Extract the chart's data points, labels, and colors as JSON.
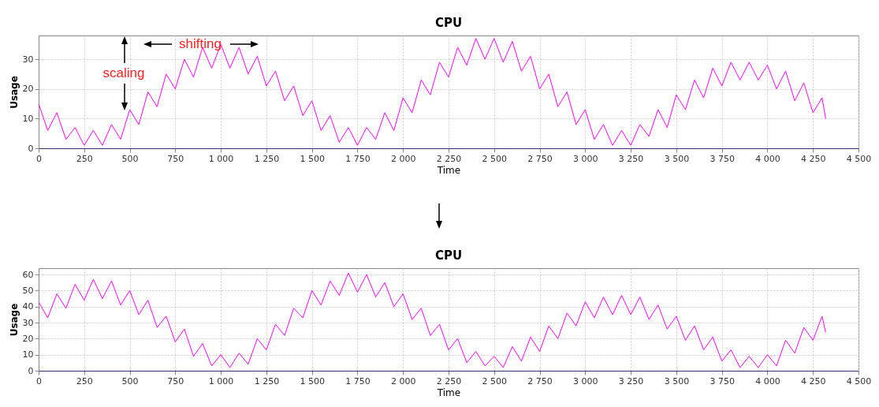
{
  "chart_data": [
    {
      "type": "line",
      "title": "CPU",
      "xlabel": "Time",
      "ylabel": "Usage",
      "annotations": [
        "scaling",
        "shifting"
      ],
      "grid": true,
      "marker": "none",
      "line_style": "solid",
      "x": [
        0,
        50,
        100,
        150,
        200,
        250,
        300,
        350,
        400,
        450,
        500,
        550,
        600,
        650,
        700,
        750,
        800,
        850,
        900,
        950,
        1000,
        1050,
        1100,
        1150,
        1200,
        1250,
        1300,
        1350,
        1400,
        1450,
        1500,
        1550,
        1600,
        1650,
        1700,
        1750,
        1800,
        1850,
        1900,
        1950,
        2000,
        2050,
        2100,
        2150,
        2200,
        2250,
        2300,
        2350,
        2400,
        2450,
        2500,
        2550,
        2600,
        2650,
        2700,
        2750,
        2800,
        2850,
        2900,
        2950,
        3000,
        3050,
        3100,
        3150,
        3200,
        3250,
        3300,
        3350,
        3400,
        3450,
        3500,
        3550,
        3600,
        3650,
        3700,
        3750,
        3800,
        3850,
        3900,
        3950,
        4000,
        4050,
        4100,
        4150,
        4200,
        4250,
        4300,
        4320
      ],
      "series": [
        {
          "color": "#ff00ff",
          "values": [
            15,
            6,
            12,
            3,
            7,
            1,
            6,
            1,
            8,
            3,
            13,
            8,
            19,
            14,
            25,
            20,
            30,
            24,
            34,
            27,
            35,
            27,
            34,
            25,
            31,
            21,
            26,
            16,
            21,
            11,
            16,
            6,
            11,
            2,
            7,
            1,
            7,
            3,
            12,
            6,
            17,
            12,
            23,
            18,
            29,
            24,
            34,
            28,
            37,
            30,
            37,
            29,
            36,
            26,
            31,
            20,
            25,
            14,
            19,
            8,
            13,
            3,
            8,
            1,
            6,
            1,
            8,
            4,
            13,
            7,
            18,
            13,
            23,
            17,
            27,
            21,
            29,
            23,
            29,
            23,
            28,
            20,
            26,
            16,
            22,
            12,
            17,
            10
          ]
        }
      ],
      "xlim": [
        0,
        4500
      ],
      "xticks": [
        0,
        250,
        500,
        750,
        {
          "value": 1000,
          "label": "1 000"
        },
        {
          "value": 1250,
          "label": "1 250"
        },
        {
          "value": 1500,
          "label": "1 500"
        },
        {
          "value": 1750,
          "label": "1 750"
        },
        {
          "value": 2000,
          "label": "2 000"
        },
        {
          "value": 2250,
          "label": "2 250"
        },
        {
          "value": 2500,
          "label": "2 500"
        },
        {
          "value": 2750,
          "label": "2 750"
        },
        {
          "value": 3000,
          "label": "3 000"
        },
        {
          "value": 3250,
          "label": "3 250"
        },
        {
          "value": 3500,
          "label": "3 500"
        },
        {
          "value": 3750,
          "label": "3 750"
        },
        {
          "value": 4000,
          "label": "4 000"
        },
        {
          "value": 4250,
          "label": "4 250"
        },
        {
          "value": 4500,
          "label": "4 500"
        }
      ],
      "ylim": [
        0,
        38
      ],
      "yticks": [
        0,
        10,
        20,
        30
      ]
    },
    {
      "type": "line",
      "title": "CPU",
      "xlabel": "Time",
      "ylabel": "Usage",
      "grid": true,
      "marker": "none",
      "line_style": "solid",
      "x": [
        0,
        50,
        100,
        150,
        200,
        250,
        300,
        350,
        400,
        450,
        500,
        550,
        600,
        650,
        700,
        750,
        800,
        850,
        900,
        950,
        1000,
        1050,
        1100,
        1150,
        1200,
        1250,
        1300,
        1350,
        1400,
        1450,
        1500,
        1550,
        1600,
        1650,
        1700,
        1750,
        1800,
        1850,
        1900,
        1950,
        2000,
        2050,
        2100,
        2150,
        2200,
        2250,
        2300,
        2350,
        2400,
        2450,
        2500,
        2550,
        2600,
        2650,
        2700,
        2750,
        2800,
        2850,
        2900,
        2950,
        3000,
        3050,
        3100,
        3150,
        3200,
        3250,
        3300,
        3350,
        3400,
        3450,
        3500,
        3550,
        3600,
        3650,
        3700,
        3750,
        3800,
        3850,
        3900,
        3950,
        4000,
        4050,
        4100,
        4150,
        4200,
        4250,
        4300,
        4320
      ],
      "series": [
        {
          "color": "#ff00ff",
          "values": [
            43,
            33,
            48,
            39,
            54,
            44,
            57,
            45,
            56,
            41,
            50,
            35,
            44,
            27,
            34,
            18,
            26,
            9,
            17,
            3,
            10,
            2,
            11,
            4,
            20,
            13,
            29,
            22,
            39,
            33,
            50,
            41,
            56,
            47,
            61,
            49,
            60,
            46,
            55,
            40,
            48,
            32,
            39,
            22,
            29,
            13,
            20,
            5,
            12,
            3,
            9,
            2,
            15,
            6,
            21,
            12,
            28,
            20,
            36,
            28,
            43,
            33,
            46,
            35,
            47,
            35,
            46,
            32,
            41,
            26,
            34,
            19,
            28,
            13,
            21,
            6,
            13,
            2,
            9,
            2,
            10,
            3,
            19,
            11,
            27,
            19,
            34,
            24
          ]
        }
      ],
      "xlim": [
        0,
        4500
      ],
      "xticks": [
        0,
        250,
        500,
        750,
        {
          "value": 1000,
          "label": "1 000"
        },
        {
          "value": 1250,
          "label": "1 250"
        },
        {
          "value": 1500,
          "label": "1 500"
        },
        {
          "value": 1750,
          "label": "1 750"
        },
        {
          "value": 2000,
          "label": "2 000"
        },
        {
          "value": 2250,
          "label": "2 250"
        },
        {
          "value": 2500,
          "label": "2 500"
        },
        {
          "value": 2750,
          "label": "2 750"
        },
        {
          "value": 3000,
          "label": "3 000"
        },
        {
          "value": 3250,
          "label": "3 250"
        },
        {
          "value": 3500,
          "label": "3 500"
        },
        {
          "value": 3750,
          "label": "3 750"
        },
        {
          "value": 4000,
          "label": "4 000"
        },
        {
          "value": 4250,
          "label": "4 250"
        },
        {
          "value": 4500,
          "label": "4 500"
        }
      ],
      "ylim": [
        0,
        64
      ],
      "yticks": [
        0,
        10,
        20,
        30,
        40,
        50,
        60
      ]
    }
  ]
}
